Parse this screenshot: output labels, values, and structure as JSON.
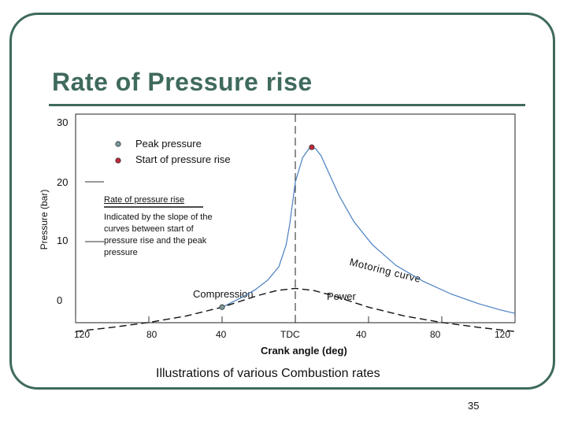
{
  "slide": {
    "title": "Rate of Pressure rise",
    "caption": "Illustrations of various Combustion rates",
    "page_number": "35"
  },
  "colors": {
    "frame": "#3f6a5e",
    "title": "#3f6a5e",
    "combustion_curve": "#4a7fc0",
    "peak_marker": "#c0283a",
    "start_marker": "#7a9a9a"
  },
  "chart_data": {
    "type": "line",
    "xlabel": "Crank angle (deg)",
    "ylabel": "Pressure (bar)",
    "x_tick_labels": [
      "120",
      "80",
      "40",
      "TDC",
      "40",
      "80",
      "120"
    ],
    "y_tick_labels": [
      "0",
      "10",
      "20",
      "30"
    ],
    "xlim": [
      -120,
      120
    ],
    "ylim": [
      0,
      30
    ],
    "legend": [
      "Peak pressure",
      "Start of pressure rise"
    ],
    "legend_position": "top-left",
    "series": [
      {
        "key": "combustion",
        "style": "solid",
        "x": [
          -40,
          -30,
          -22,
          -15,
          -9,
          -5,
          -3,
          0,
          4,
          8,
          11,
          14,
          18,
          24,
          32,
          42,
          55,
          70,
          85,
          100,
          112,
          120
        ],
        "y": [
          4.5,
          5.8,
          7.0,
          8.4,
          10.3,
          13.5,
          16.5,
          22.5,
          26.0,
          27.5,
          27.3,
          26.3,
          24.0,
          20.5,
          16.8,
          13.5,
          10.5,
          8.2,
          6.4,
          5.0,
          4.1,
          3.6
        ]
      },
      {
        "key": "motoring",
        "style": "dashed",
        "x": [
          -120,
          -100,
          -80,
          -60,
          -40,
          -20,
          -10,
          0,
          10,
          20,
          40,
          60,
          80,
          100,
          120
        ],
        "y": [
          1.0,
          1.6,
          2.3,
          3.2,
          4.5,
          6.2,
          6.9,
          7.2,
          6.9,
          6.2,
          4.5,
          3.2,
          2.3,
          1.6,
          1.0
        ]
      }
    ],
    "points": [
      {
        "label": "Peak pressure",
        "x": 9,
        "y": 27.5,
        "color": "#c0283a"
      },
      {
        "label": "Start of pressure rise",
        "x": -40,
        "y": 4.5,
        "color": "#7a9a9a"
      }
    ],
    "reference_lines": [
      {
        "orientation": "vertical",
        "x": 0,
        "style": "dashed"
      }
    ],
    "annotations": {
      "rate_heading": "Rate of pressure rise",
      "rate_note": [
        "Indicated by the slope of the",
        "curves between start of",
        "pressure rise and the peak",
        "pressure"
      ],
      "compression": "Compression",
      "power": "Power",
      "motoring_curve": "Motoring curve"
    }
  }
}
